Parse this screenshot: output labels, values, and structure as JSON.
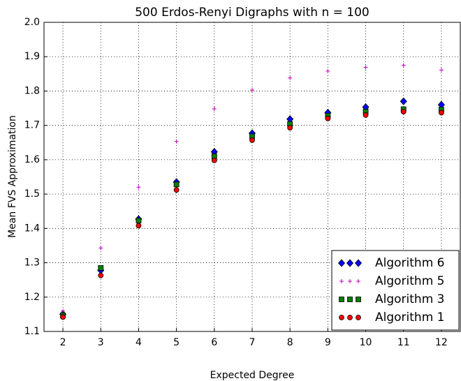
{
  "chart_data": {
    "type": "scatter",
    "title": "500 Erdos-Renyi Digraphs with n = 100",
    "xlabel": "Expected Degree",
    "ylabel": "Mean FVS Approximation",
    "x": [
      2,
      3,
      4,
      5,
      6,
      7,
      8,
      9,
      10,
      11,
      12
    ],
    "xlim": [
      1.5,
      12.5
    ],
    "xticks": [
      2,
      3,
      4,
      5,
      6,
      7,
      8,
      9,
      10,
      11,
      12
    ],
    "ylim": [
      1.1,
      2.0
    ],
    "yticks": [
      1.1,
      1.2,
      1.3,
      1.4,
      1.5,
      1.6,
      1.7,
      1.8,
      1.9,
      {
        "value": 2.0,
        "label": "2.0"
      }
    ],
    "grid": true,
    "legend": "lower right",
    "series": [
      {
        "name": "Algorithm 6",
        "color": "#0000ff",
        "marker": "diamond",
        "values": [
          1.15,
          1.278,
          1.427,
          1.535,
          1.623,
          1.677,
          1.718,
          1.737,
          1.753,
          1.77,
          1.76
        ]
      },
      {
        "name": "Algorithm 5",
        "color": "#bf00bf",
        "marker": "plus",
        "values": [
          1.16,
          1.343,
          1.52,
          1.653,
          1.748,
          1.803,
          1.838,
          1.858,
          1.869,
          1.875,
          1.861
        ]
      },
      {
        "name": "Algorithm 3",
        "color": "#008000",
        "marker": "square",
        "values": [
          1.147,
          1.285,
          1.423,
          1.528,
          1.61,
          1.668,
          1.704,
          1.728,
          1.74,
          1.747,
          1.746
        ]
      },
      {
        "name": "Algorithm 1",
        "color": "#ff0000",
        "marker": "circle",
        "values": [
          1.142,
          1.263,
          1.408,
          1.512,
          1.598,
          1.657,
          1.693,
          1.72,
          1.73,
          1.74,
          1.737
        ]
      }
    ]
  }
}
